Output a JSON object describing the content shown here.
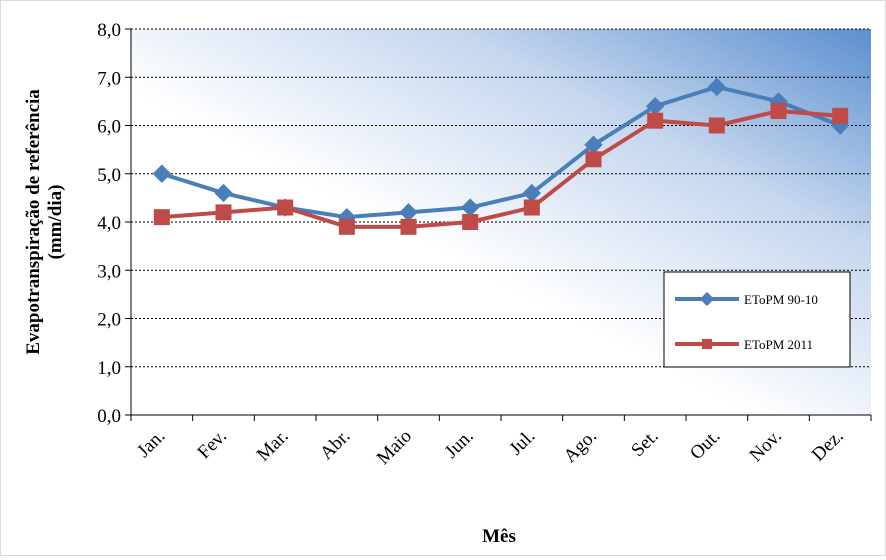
{
  "chart_data": {
    "type": "line",
    "title": "",
    "xlabel": "Mês",
    "ylabel": [
      "Evapotranspiração de referência",
      "(mm/dia)"
    ],
    "categories": [
      "Jan.",
      "Fev.",
      "Mar.",
      "Abr.",
      "Maio",
      "Jun.",
      "Jul.",
      "Ago.",
      "Set.",
      "Out.",
      "Nov.",
      "Dez."
    ],
    "yticks": [
      "0,0",
      "1,0",
      "2,0",
      "3,0",
      "4,0",
      "5,0",
      "6,0",
      "7,0",
      "8,0"
    ],
    "ylim": [
      0,
      8
    ],
    "grid": true,
    "legend_position": "right-middle",
    "series": [
      {
        "name": "EToPM 90-10",
        "color": "#4a7ebb",
        "marker": "diamond",
        "values": [
          5.0,
          4.6,
          4.3,
          4.1,
          4.2,
          4.3,
          4.6,
          5.6,
          6.4,
          6.8,
          6.5,
          6.0
        ]
      },
      {
        "name": "EToPM 2011",
        "color": "#be4b48",
        "marker": "square",
        "values": [
          4.1,
          4.2,
          4.3,
          3.9,
          3.9,
          4.0,
          4.3,
          5.3,
          6.1,
          6.0,
          6.3,
          6.2
        ]
      }
    ]
  }
}
